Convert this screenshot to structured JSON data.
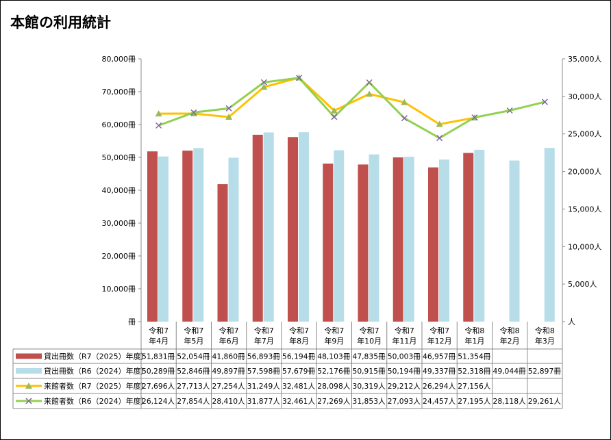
{
  "title": "本館の利用統計",
  "chart_data": {
    "type": "bar+line",
    "categories": [
      "令和7\n年4月",
      "令和7\n年5月",
      "令和7\n年6月",
      "令和7\n年7月",
      "令和7\n年8月",
      "令和7\n年9月",
      "令和7\n年10月",
      "令和7\n年11月",
      "令和7\n年12月",
      "令和8\n年1月",
      "令和8\n年2月",
      "令和8\n年3月"
    ],
    "y_left": {
      "range": [
        0,
        80000
      ],
      "ticks": [
        "冊",
        "10,000冊",
        "20,000冊",
        "30,000冊",
        "40,000冊",
        "50,000冊",
        "60,000冊",
        "70,000冊",
        "80,000冊"
      ]
    },
    "y_right": {
      "range": [
        0,
        35000
      ],
      "ticks": [
        "人",
        "5,000人",
        "10,000人",
        "15,000人",
        "20,000人",
        "25,000人",
        "30,000人",
        "35,000人"
      ]
    },
    "grid": false,
    "legend": "table-bottom",
    "series": [
      {
        "name": "貸出冊数（R7（2025）年度）",
        "type": "bar",
        "axis": "left",
        "color": "#C0504D",
        "unit": "冊",
        "values": [
          51831,
          52054,
          41860,
          56893,
          56194,
          48103,
          47835,
          50003,
          46957,
          51354,
          null,
          null
        ]
      },
      {
        "name": "貸出冊数（R6（2024）年度）",
        "type": "bar",
        "axis": "left",
        "color": "#B7DEE8",
        "unit": "冊",
        "values": [
          50289,
          52846,
          49897,
          57598,
          57679,
          52176,
          50915,
          50194,
          49337,
          52318,
          49044,
          52897
        ]
      },
      {
        "name": "来館者数（R7（2025）年度）",
        "type": "line",
        "axis": "right",
        "color": "#FFC000",
        "marker": "triangle",
        "marker_color": "#9BBB59",
        "unit": "人",
        "values": [
          27696,
          27713,
          27254,
          31249,
          32481,
          28098,
          30319,
          29212,
          26294,
          27156,
          null,
          null
        ]
      },
      {
        "name": "来館者数（R6（2024）年度）",
        "type": "line",
        "axis": "right",
        "color": "#92D050",
        "marker": "x",
        "marker_color": "#8064A2",
        "unit": "人",
        "values": [
          26124,
          27854,
          28410,
          31877,
          32461,
          27269,
          31853,
          27093,
          24457,
          27195,
          28118,
          29261
        ]
      }
    ]
  }
}
